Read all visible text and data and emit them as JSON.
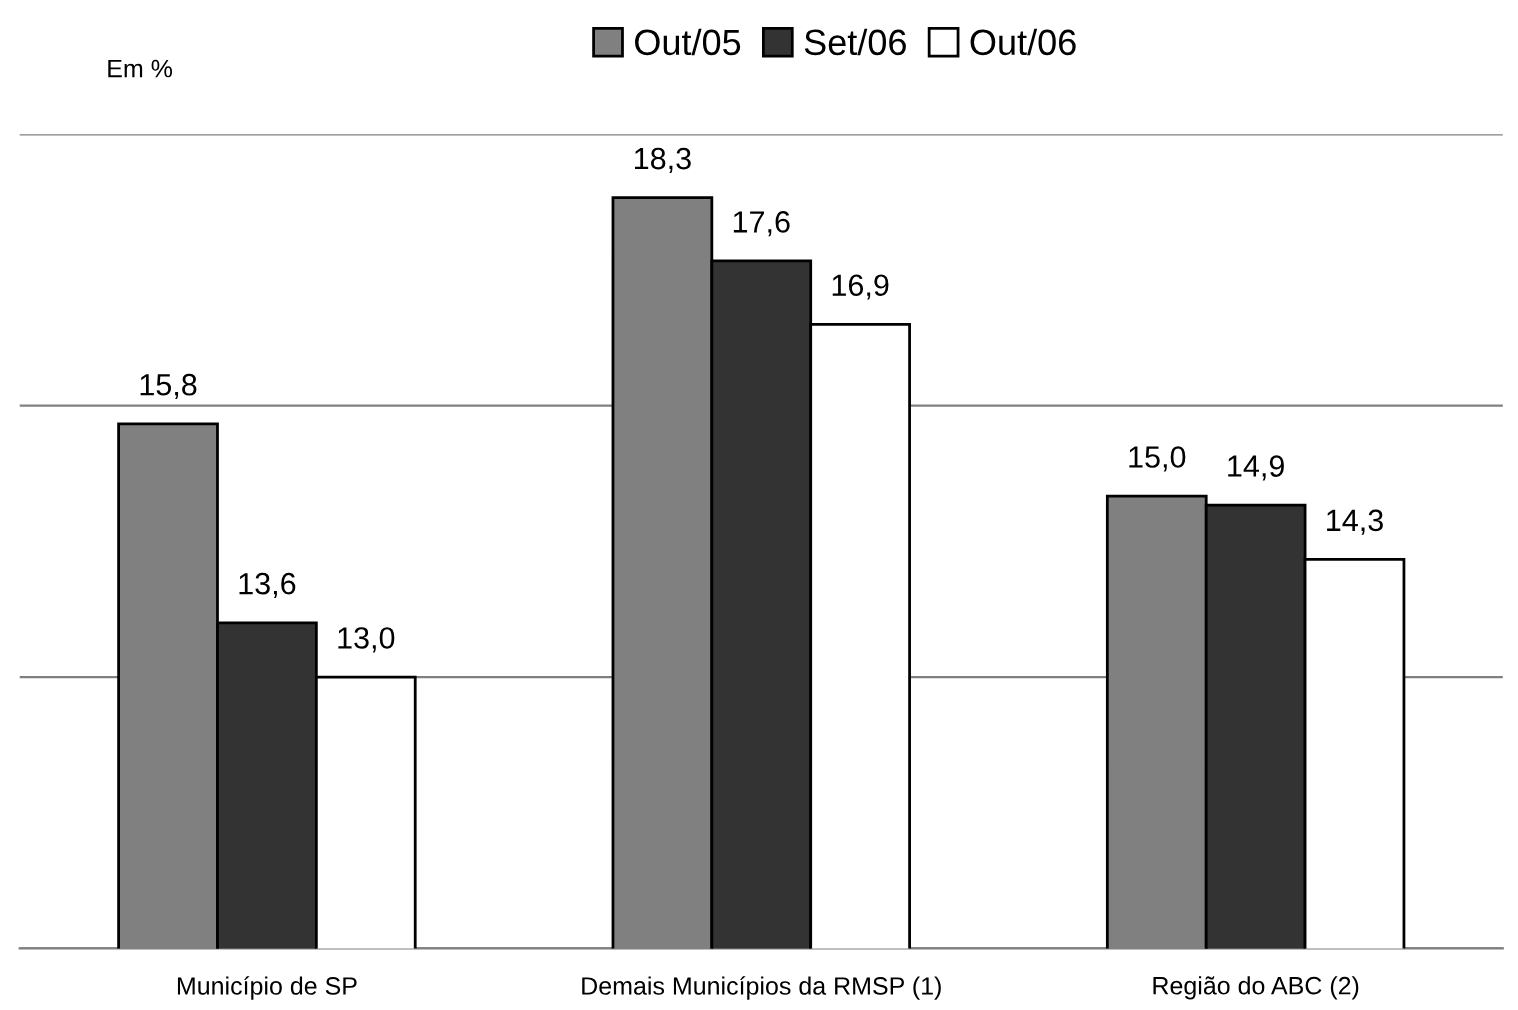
{
  "chart_data": {
    "type": "bar",
    "categories": [
      "Município de SP",
      "Demais Municípios da RMSP (1)",
      "Região do ABC (2)"
    ],
    "series": [
      {
        "name": "Out/05",
        "color": "#808080",
        "values": [
          15.8,
          18.3,
          15.0
        ],
        "value_labels": [
          "15,8",
          "18,3",
          "15,0"
        ]
      },
      {
        "name": "Set/06",
        "color": "#333333",
        "values": [
          13.6,
          17.6,
          14.9
        ],
        "value_labels": [
          "13,6",
          "17,6",
          "14,9"
        ]
      },
      {
        "name": "Out/06",
        "color": "#ffffff",
        "values": [
          13.0,
          16.9,
          14.3
        ],
        "value_labels": [
          "13,0",
          "16,9",
          "14,3"
        ]
      }
    ],
    "ylim": [
      10,
      19
    ],
    "yticks": [
      {
        "value": 10,
        "label": null
      },
      {
        "value": 13,
        "label": null
      },
      {
        "value": 16,
        "label": null
      },
      {
        "value": 19,
        "label": null
      }
    ],
    "tick_labels": "x",
    "grid": "y",
    "legend": "top",
    "annotations": [
      "Em %"
    ]
  }
}
